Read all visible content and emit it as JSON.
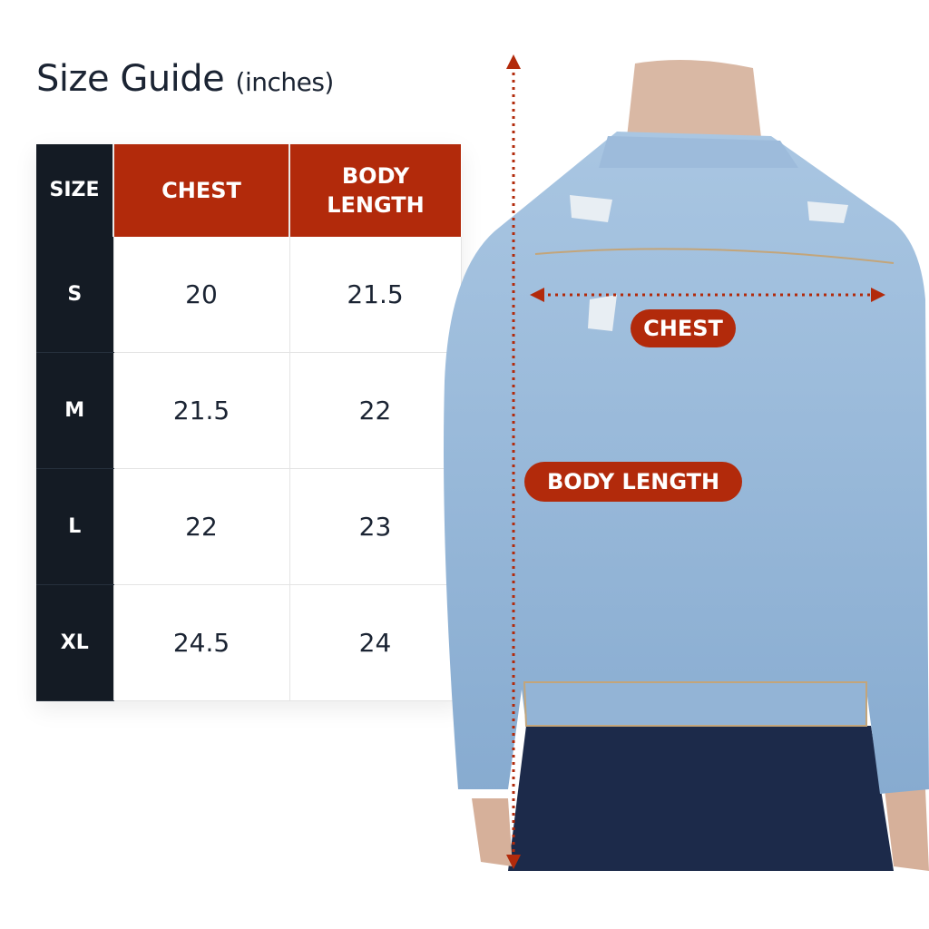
{
  "title": {
    "main": "Size Guide",
    "unit": "(inches)"
  },
  "table": {
    "headers": [
      "SIZE",
      "CHEST",
      "BODY",
      "LENGTH"
    ],
    "rows": [
      {
        "size": "S",
        "chest": "20",
        "length": "21.5"
      },
      {
        "size": "M",
        "chest": "21.5",
        "length": "22"
      },
      {
        "size": "L",
        "chest": "22",
        "length": "23"
      },
      {
        "size": "XL",
        "chest": "24.5",
        "length": "24"
      }
    ]
  },
  "labels": {
    "chest": "CHEST",
    "body_length": "BODY LENGTH"
  },
  "colors": {
    "accent": "#b22a0b",
    "dark": "#141b24",
    "denim": "#8fb3d6",
    "jeans": "#1c2a4a"
  }
}
